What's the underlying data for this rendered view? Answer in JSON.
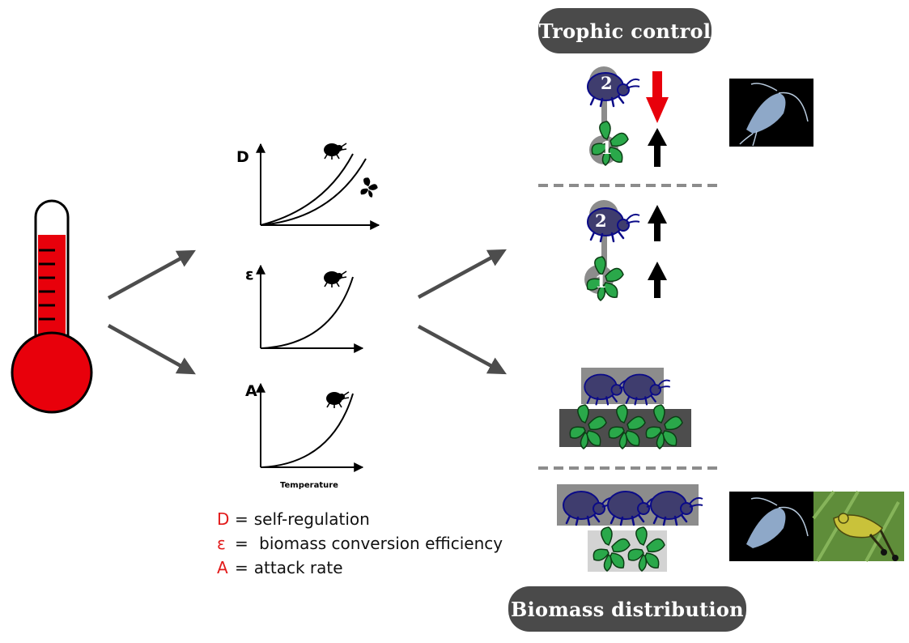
{
  "labels": {
    "trophic_control": "Trophic control",
    "biomass_distribution": "Biomass distribution"
  },
  "panels": {
    "d": {
      "label": "D"
    },
    "e": {
      "label": "ε"
    },
    "a": {
      "label": "A"
    },
    "x_label": "Temperature"
  },
  "food_chain": {
    "predator_level": "2",
    "resource_level": "1"
  },
  "legend": [
    {
      "key": "D",
      "text": "self-regulation"
    },
    {
      "key": "ε",
      "text": " biomass conversion efficiency"
    },
    {
      "key": "A",
      "text": "attack rate"
    }
  ],
  "legend_eq": "=",
  "colors": {
    "red": "#e21a1a",
    "predator": "#3f3d6e",
    "leaf": "#2aa84a",
    "pill": "#4a4a4a",
    "gray": "#8c8c8c"
  }
}
